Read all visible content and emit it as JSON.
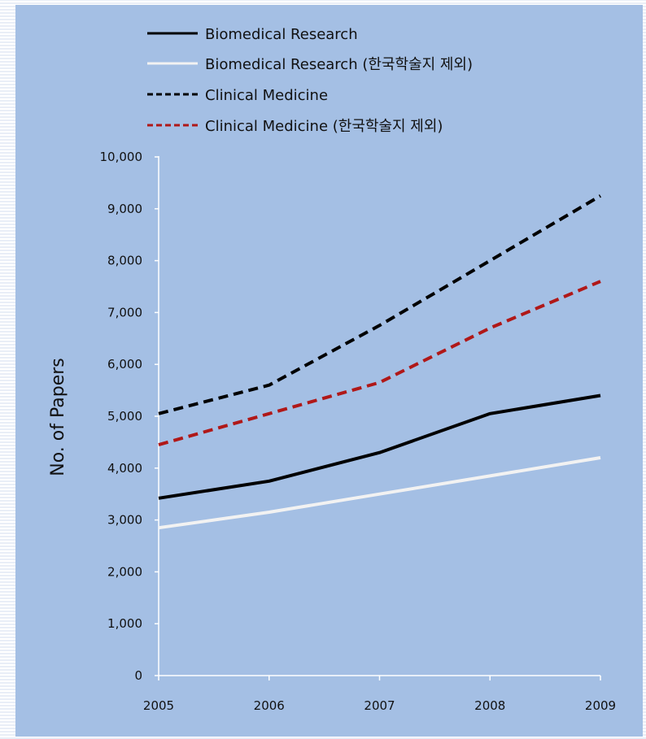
{
  "chart_data": {
    "type": "line",
    "title": "",
    "xlabel": "",
    "ylabel": "No. of Papers",
    "x": [
      "2005",
      "2006",
      "2007",
      "2008",
      "2009"
    ],
    "y_ticks": [
      "0",
      "1,000",
      "2,000",
      "3,000",
      "4,000",
      "5,000",
      "6,000",
      "7,000",
      "8,000",
      "9,000",
      "10,000"
    ],
    "ylim": [
      0,
      10000
    ],
    "grid": false,
    "legend_position": "top",
    "series": [
      {
        "name": "Biomedical Research",
        "style": "solid",
        "color": "#000000",
        "values": [
          3420,
          3750,
          4300,
          5050,
          5400
        ]
      },
      {
        "name": "Biomedical Research (한국학술지 제외)",
        "style": "solid",
        "color": "#f2f2f2",
        "values": [
          2850,
          3150,
          3500,
          3850,
          4200
        ]
      },
      {
        "name": "Clinical Medicine",
        "style": "dashed",
        "color": "#000000",
        "values": [
          5050,
          5600,
          6750,
          8000,
          9250
        ]
      },
      {
        "name": "Clinical Medicine (한국학술지 제외)",
        "style": "dashed",
        "color": "#b01818",
        "values": [
          4450,
          5050,
          5650,
          6700,
          7600
        ]
      }
    ]
  },
  "colors": {
    "background": "#a4bfe4",
    "axis": "#ffffff"
  }
}
